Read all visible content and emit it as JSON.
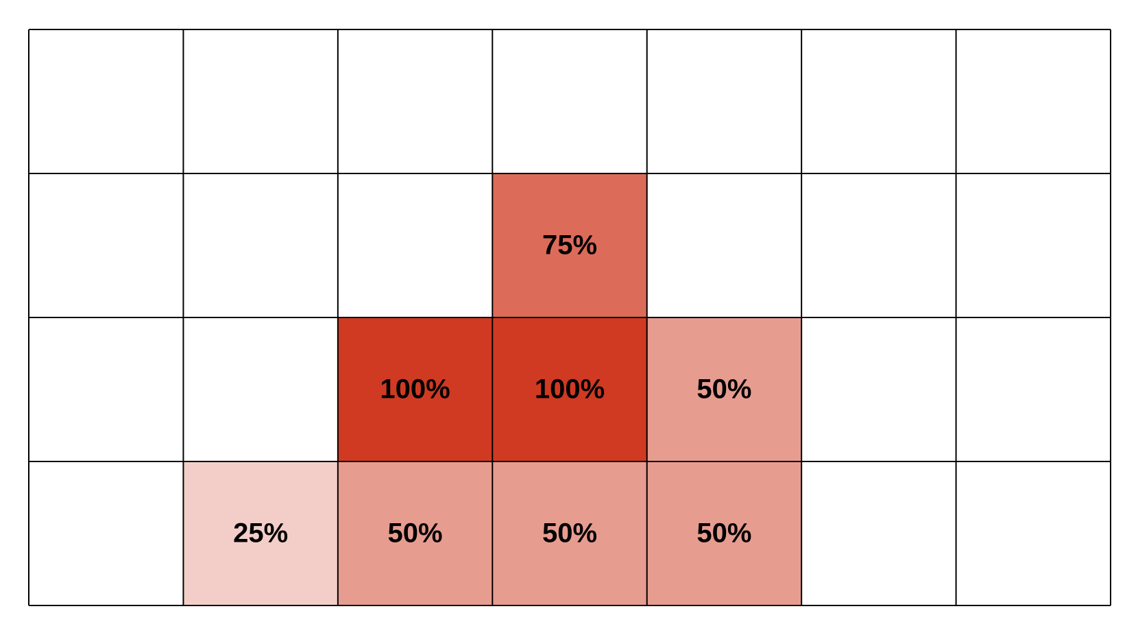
{
  "chart_data": {
    "type": "heatmap",
    "color": "#d03a22",
    "values": [
      [
        null,
        null,
        null,
        null,
        null,
        null,
        null
      ],
      [
        null,
        null,
        null,
        75,
        null,
        null,
        null
      ],
      [
        null,
        null,
        100,
        100,
        50,
        null,
        null
      ],
      [
        null,
        25,
        50,
        50,
        50,
        null,
        null
      ]
    ],
    "value_labels": [
      [
        null,
        null,
        null,
        null,
        null,
        null,
        null
      ],
      [
        null,
        null,
        null,
        "75%",
        null,
        null,
        null
      ],
      [
        null,
        null,
        "100%",
        "100%",
        "50%",
        null,
        null
      ],
      [
        null,
        "25%",
        "50%",
        "50%",
        "50%",
        null,
        null
      ]
    ]
  }
}
